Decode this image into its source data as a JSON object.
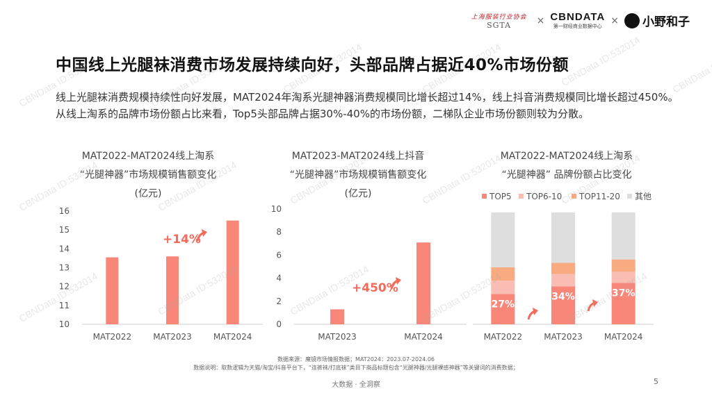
{
  "logos": {
    "sgta_script": "上海服装行业协会",
    "sgta_mark": "SGTA",
    "separator": "×",
    "cbn_mark": "CBNDATA",
    "cbn_sub": "第一财经商业数据中心",
    "xiaoye": "小野和子"
  },
  "title": "中国线上光腿袜消费市场发展持续向好，头部品牌占据近40%市场份额",
  "summary": "线上光腿袜消费规模持续性向好发展，MAT2024年淘系光腿神器消费规模同比增长超过14%，线上抖音消费规模同比增长超过450%。从线上淘系的品牌市场份额占比来看，Top5头部品牌占据30%-40%的市场份额，二梯队企业市场份额则较为分散。",
  "chart_titles": {
    "c1": [
      "MAT2022-MAT2024线上淘系",
      "“光腿神器”市场规模销售额变化",
      "(亿元)"
    ],
    "c2": [
      "MAT2023-MAT2024线上抖音",
      "“光腿神器”市场规模销售额变化",
      "(亿元)"
    ],
    "c3": [
      "MAT2022-MAT2024线上淘系",
      "“光腿神器” 品牌份额占比变化"
    ]
  },
  "colors": {
    "bar": "#f8877a",
    "accent": "#f26b5b",
    "top5": "#f8877a",
    "top6_10": "#f9bdb4",
    "top11_20": "#f8ab80",
    "other": "#dedede",
    "axis": "#cccccc"
  },
  "chart_data": [
    {
      "type": "bar",
      "categories": [
        "MAT2022",
        "MAT2023",
        "MAT2024"
      ],
      "values": [
        13.55,
        13.6,
        15.5
      ],
      "ylim": [
        10,
        16
      ],
      "yticks": [
        10,
        11,
        12,
        13,
        14,
        15,
        16
      ],
      "annotation": "+14%"
    },
    {
      "type": "bar",
      "categories": [
        "MAT2023",
        "MAT2024"
      ],
      "values": [
        1.3,
        7.1
      ],
      "ylim": [
        0,
        10
      ],
      "yticks": [
        0,
        2,
        4,
        6,
        8,
        10
      ],
      "annotation": "+450%"
    },
    {
      "type": "bar",
      "stacked": true,
      "percent": true,
      "categories": [
        "MAT2022",
        "MAT2023",
        "MAT2024"
      ],
      "series": [
        {
          "name": "TOP5",
          "values": [
            27,
            34,
            37
          ]
        },
        {
          "name": "TOP6-10",
          "values": [
            12,
            11,
            10
          ]
        },
        {
          "name": "TOP11-20",
          "values": [
            12,
            10,
            11
          ]
        },
        {
          "name": "其他",
          "values": [
            49,
            45,
            42
          ]
        }
      ],
      "labels": [
        "27%",
        "34%",
        "37%"
      ]
    }
  ],
  "footer": {
    "source": "数据来源：魔镜市场情报数据；MAT2024：2023.07-2024.06",
    "note": "数据说明：取数逻辑为天猫/淘宝/抖音平台下，“连裤袜/打底袜”类目下商品标题包含“光腿神器/光腿裸感神器”等关键词的消费数据；",
    "brand": "大数据 · 全洞察",
    "page": "5"
  },
  "watermark": "CBNData ID:532014"
}
